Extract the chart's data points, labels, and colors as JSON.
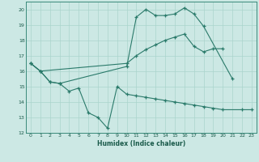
{
  "xlabel": "Humidex (Indice chaleur)",
  "bg_color": "#cce8e4",
  "grid_color": "#aad4cc",
  "line_color": "#2a7a6a",
  "xlim": [
    -0.5,
    23.5
  ],
  "ylim": [
    12,
    20.5
  ],
  "xticks": [
    0,
    1,
    2,
    3,
    4,
    5,
    6,
    7,
    8,
    9,
    10,
    11,
    12,
    13,
    14,
    15,
    16,
    17,
    18,
    19,
    20,
    21,
    22,
    23
  ],
  "yticks": [
    12,
    13,
    14,
    15,
    16,
    17,
    18,
    19,
    20
  ],
  "line1_x": [
    0,
    1,
    2,
    3,
    4,
    5,
    6,
    7,
    8,
    9,
    10,
    11,
    12,
    13,
    14,
    15,
    16,
    17,
    18,
    19,
    20,
    22,
    23
  ],
  "line1_y": [
    16.5,
    16.0,
    15.3,
    15.2,
    14.7,
    14.9,
    13.3,
    13.0,
    12.3,
    15.0,
    14.5,
    14.4,
    14.3,
    14.2,
    14.1,
    14.0,
    13.9,
    13.8,
    13.7,
    13.6,
    13.5,
    13.5,
    13.5
  ],
  "line2_x": [
    0,
    1,
    2,
    3,
    10,
    11,
    12,
    13,
    14,
    15,
    16,
    17,
    18,
    21
  ],
  "line2_y": [
    16.5,
    16.0,
    15.3,
    15.2,
    16.3,
    19.5,
    20.0,
    19.6,
    19.6,
    19.7,
    20.1,
    19.7,
    18.9,
    15.5
  ],
  "line3_x": [
    0,
    1,
    10,
    11,
    12,
    13,
    14,
    15,
    16,
    17,
    18,
    19,
    20
  ],
  "line3_y": [
    16.5,
    16.0,
    16.5,
    17.0,
    17.4,
    17.7,
    18.0,
    18.2,
    18.4,
    17.6,
    17.25,
    17.45,
    17.45
  ]
}
